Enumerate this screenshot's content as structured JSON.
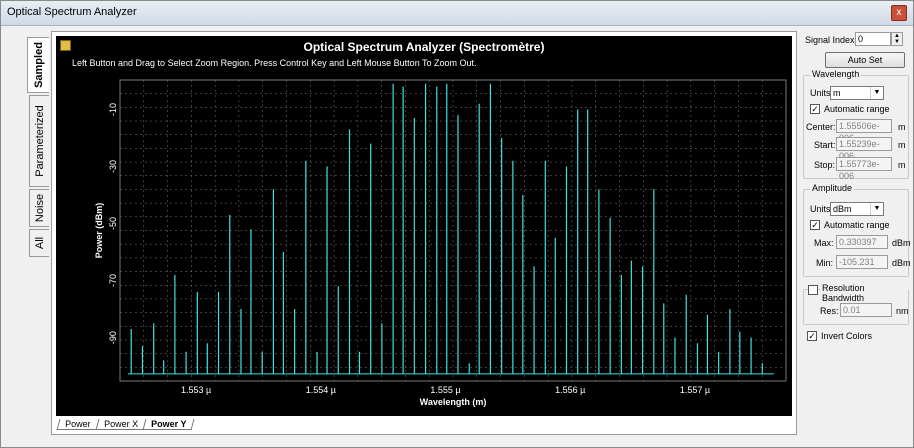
{
  "window": {
    "title": "Optical Spectrum Analyzer",
    "close_glyph": "x"
  },
  "side_tabs": [
    "Sampled",
    "Parameterized",
    "Noise",
    "All"
  ],
  "bottom_tabs": [
    "Power",
    "Power X",
    "Power Y"
  ],
  "plot": {
    "title": "Optical Spectrum Analyzer (Spectromètre)",
    "hint": "Left Button and Drag to Select Zoom Region. Press Control Key and Left Mouse Button To Zoom Out.",
    "colors": {
      "background": "#000000",
      "trace": "#40e0e0",
      "grid": "#7a7a7a",
      "text": "#ffffff"
    }
  },
  "chart_data": {
    "type": "line",
    "title": "Optical Spectrum Analyzer (Spectromètre)",
    "xlabel": "Wavelength (m)",
    "ylabel": "Power (dBm)",
    "x_ticks": [
      "1.553 µ",
      "1.554 µ",
      "1.555 µ",
      "1.556 µ",
      "1.557 µ"
    ],
    "x_tick_values": [
      1.553,
      1.554,
      1.555,
      1.556,
      1.557
    ],
    "y_ticks": [
      "-10",
      "-30",
      "-50",
      "-70",
      "-90"
    ],
    "y_tick_values": [
      -10,
      -30,
      -50,
      -70,
      -90
    ],
    "xlim": [
      1.55239,
      1.55773
    ],
    "ylim": [
      -105.231,
      0.330397
    ],
    "grid": true,
    "series": [
      {
        "peaks_x": [
          1.55248,
          1.55257,
          1.55266,
          1.55274,
          1.55283,
          1.55292,
          1.55301,
          1.55309,
          1.55318,
          1.55327,
          1.55336,
          1.55344,
          1.55353,
          1.55362,
          1.5537,
          1.55379,
          1.55388,
          1.55397,
          1.55405,
          1.55414,
          1.55423,
          1.55431,
          1.5544,
          1.55449,
          1.55458,
          1.55466,
          1.55475,
          1.55484,
          1.55493,
          1.55501,
          1.5551,
          1.55519,
          1.55527,
          1.55536,
          1.55545,
          1.55554,
          1.55562,
          1.55571,
          1.5558,
          1.55588,
          1.55597,
          1.55606,
          1.55614,
          1.55623,
          1.55632,
          1.55641,
          1.55649,
          1.55658,
          1.55667,
          1.55675,
          1.55684,
          1.55693,
          1.55702,
          1.5571,
          1.55719,
          1.55728,
          1.55736,
          1.55745,
          1.55754
        ],
        "peaks_y": [
          -87,
          -93,
          -85,
          -98,
          -68,
          -95,
          -74,
          -92,
          -74,
          -47,
          -80,
          -52,
          -95,
          -38,
          -60,
          -80,
          -28,
          -95,
          -30,
          -72,
          -17,
          -95,
          -22,
          -85,
          -1,
          -2,
          -13,
          -1,
          -2,
          -1,
          -12,
          -99,
          -8,
          -1,
          -20,
          -28,
          -40,
          -65,
          -28,
          -55,
          -30,
          -10,
          -10,
          -38,
          -48,
          -68,
          -63,
          -65,
          -38,
          -78,
          -90,
          -75,
          -92,
          -82,
          -95,
          -80,
          -88,
          -90,
          -99
        ]
      }
    ]
  },
  "right_panel": {
    "signal_index_label": "Signal Index:",
    "signal_index_value": "0",
    "auto_set_label": "Auto Set",
    "wavelength": {
      "legend": "Wavelength",
      "units_label": "Units:",
      "units_value": "m",
      "auto_range_label": "Automatic range",
      "auto_range_checked": true,
      "center_label": "Center:",
      "center_value": "1.55506e-006",
      "start_label": "Start:",
      "start_value": "1.55239e-006",
      "stop_label": "Stop:",
      "stop_value": "1.55773e-006",
      "unit_suffix": "m"
    },
    "amplitude": {
      "legend": "Amplitude",
      "units_label": "Units:",
      "units_value": "dBm",
      "auto_range_label": "Automatic range",
      "auto_range_checked": true,
      "max_label": "Max:",
      "max_value": "0.330397",
      "min_label": "Min:",
      "min_value": "-105.231",
      "unit_suffix": "dBm"
    },
    "resolution": {
      "legend": "Resolution Bandwidth",
      "checked": false,
      "res_label": "Res:",
      "res_value": "0.01",
      "unit_suffix": "nm"
    },
    "invert_colors_label": "Invert Colors",
    "invert_colors_checked": true
  }
}
